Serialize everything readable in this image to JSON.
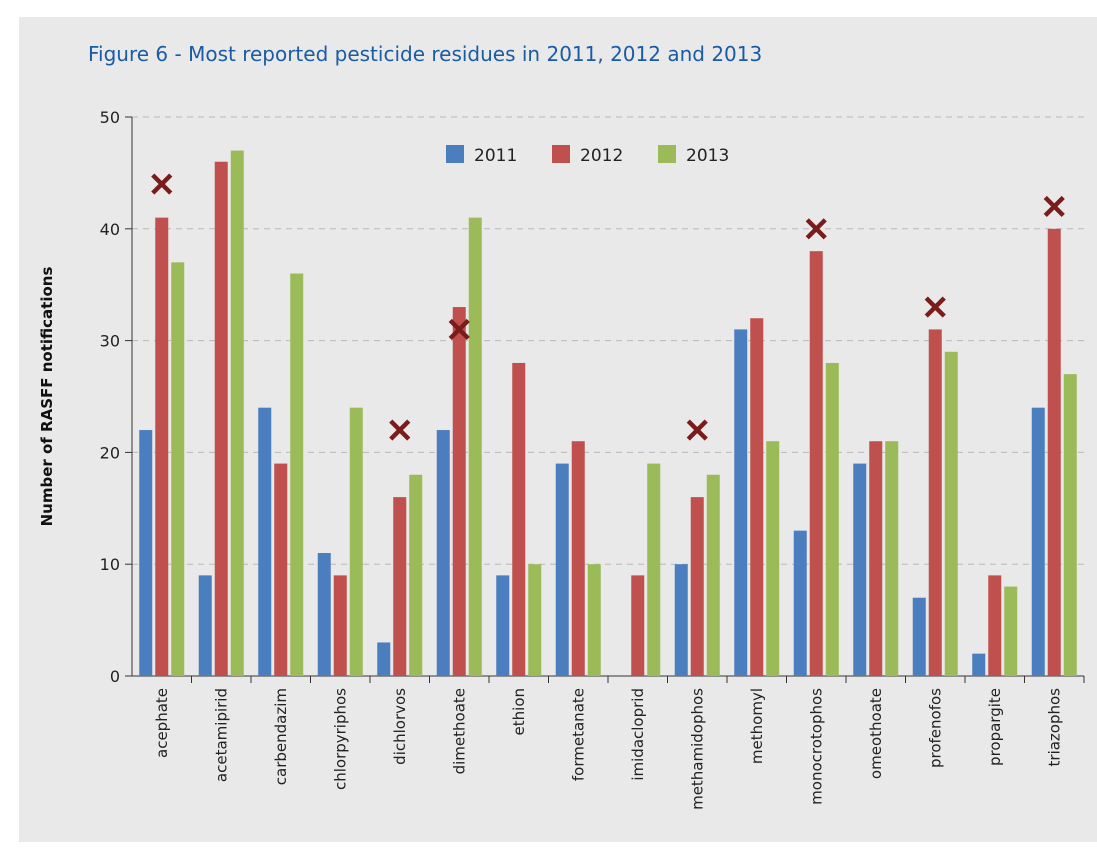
{
  "title": "Figure 6 - Most reported pesticide residues in 2011, 2012 and 2013",
  "chart_data": {
    "type": "bar",
    "title": "Figure 6 - Most reported pesticide residues in 2011, 2012 and 2013",
    "xlabel": "",
    "ylabel": "Number of RASFF notifications",
    "ylim": [
      0,
      50
    ],
    "yticks": [
      0,
      10,
      20,
      30,
      40,
      50
    ],
    "grid": true,
    "legend_position": "top-center",
    "categories": [
      "acephate",
      "acetamipirid",
      "carbendazim",
      "chlorpyriphos",
      "dichlorvos",
      "dimethoate",
      "ethion",
      "formetanate",
      "imidacloprid",
      "methamidophos",
      "methomyl",
      "monocrotophos",
      "omeothoate",
      "profenofos",
      "propargite",
      "triazophos"
    ],
    "series": [
      {
        "name": "2011",
        "color": "#4a7ebf",
        "values": [
          22,
          9,
          24,
          11,
          3,
          22,
          9,
          19,
          0,
          10,
          31,
          13,
          19,
          7,
          2,
          24
        ]
      },
      {
        "name": "2012",
        "color": "#c0504d",
        "values": [
          41,
          46,
          19,
          9,
          16,
          33,
          28,
          21,
          9,
          16,
          32,
          38,
          21,
          31,
          9,
          40
        ]
      },
      {
        "name": "2013",
        "color": "#9bbb59",
        "values": [
          37,
          47,
          36,
          24,
          18,
          41,
          10,
          10,
          19,
          18,
          21,
          28,
          21,
          29,
          8,
          27
        ]
      }
    ],
    "markers": {
      "symbol": "×",
      "color": "#7b1c1c",
      "points": [
        {
          "category": "acephate",
          "value": 44
        },
        {
          "category": "dichlorvos",
          "value": 22
        },
        {
          "category": "dimethoate",
          "value": 31
        },
        {
          "category": "methamidophos",
          "value": 22
        },
        {
          "category": "monocrotophos",
          "value": 40
        },
        {
          "category": "profenofos",
          "value": 33
        },
        {
          "category": "triazophos",
          "value": 42
        }
      ]
    }
  }
}
